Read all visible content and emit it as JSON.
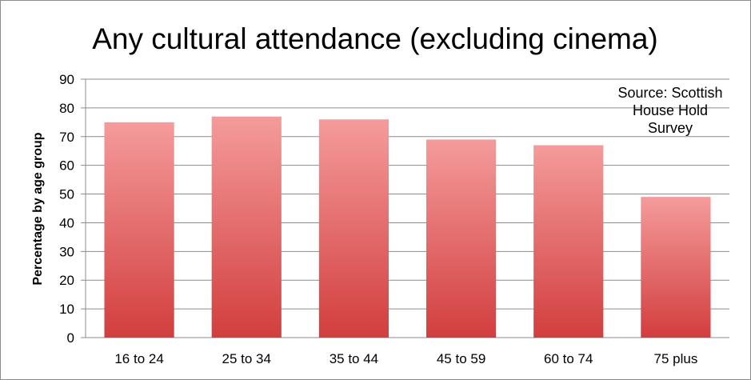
{
  "chart_data": {
    "type": "bar",
    "title": "Any cultural attendance (excluding cinema)",
    "xlabel": "",
    "ylabel": "Percentage by age group",
    "categories": [
      "16 to 24",
      "25 to 34",
      "35 to 44",
      "45 to 59",
      "60 to 74",
      "75 plus"
    ],
    "values": [
      75,
      77,
      76,
      69,
      67,
      49
    ],
    "ylim": [
      0,
      90
    ],
    "yticks": [
      0,
      10,
      20,
      30,
      40,
      50,
      60,
      70,
      80,
      90
    ],
    "grid": true,
    "legend": "none",
    "annotation": [
      "Source: Scottish",
      "House Hold",
      "Survey"
    ],
    "colors": {
      "bar_top": "#f59b9b",
      "bar_bottom": "#d23e3e",
      "gridline": "#8c8c8c",
      "axis": "#8c8c8c"
    }
  }
}
